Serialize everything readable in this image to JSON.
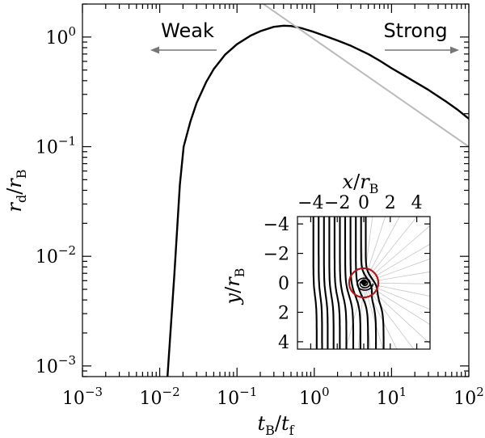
{
  "chart_data": [
    {
      "type": "line",
      "scale": {
        "x": "log",
        "y": "log"
      },
      "xlim": [
        0.001,
        100
      ],
      "ylim": [
        0.0008,
        2.0
      ],
      "x_ticks": [
        {
          "base": "10",
          "exp": "−3"
        },
        {
          "base": "10",
          "exp": "−2"
        },
        {
          "base": "10",
          "exp": "−1"
        },
        {
          "base": "10",
          "exp": "0"
        },
        {
          "base": "10",
          "exp": "1"
        },
        {
          "base": "10",
          "exp": "2"
        }
      ],
      "y_ticks": [
        {
          "base": "10",
          "exp": "−3"
        },
        {
          "base": "10",
          "exp": "−2"
        },
        {
          "base": "10",
          "exp": "−1"
        },
        {
          "base": "10",
          "exp": "0"
        }
      ],
      "xlabel": {
        "a": "t",
        "a_sub": "B",
        "sep": "/",
        "b": "t",
        "b_sub": "f"
      },
      "ylabel": {
        "a": "r",
        "a_sub": "d",
        "sep": "/",
        "b": "r",
        "b_sub": "B"
      },
      "annotations": {
        "weak": "Weak",
        "strong": "Strong"
      },
      "series": [
        {
          "style": "black-solid",
          "color": "#000000",
          "x": [
            0.0126,
            0.0155,
            0.0182,
            0.0204,
            0.025,
            0.03,
            0.04,
            0.05,
            0.07,
            0.1,
            0.15,
            0.2,
            0.3,
            0.4,
            0.5,
            0.7,
            1.0,
            1.5,
            2,
            3,
            5,
            7,
            10,
            15,
            20,
            30,
            50,
            70,
            100
          ],
          "y": [
            0.0008,
            0.007,
            0.045,
            0.1,
            0.17,
            0.25,
            0.39,
            0.51,
            0.69,
            0.86,
            1.03,
            1.13,
            1.24,
            1.27,
            1.26,
            1.2,
            1.11,
            1.0,
            0.93,
            0.83,
            0.7,
            0.61,
            0.52,
            0.44,
            0.39,
            0.33,
            0.26,
            0.22,
            0.18
          ]
        },
        {
          "style": "gray-solid",
          "color": "#bbbbbb",
          "x": [
            0.22,
            100
          ],
          "y": [
            2.0,
            0.1
          ]
        }
      ]
    },
    {
      "type": "streamlines",
      "inset": true,
      "xlim": [
        -5,
        5
      ],
      "ylim": [
        -4.5,
        4.5
      ],
      "y_inverted": true,
      "x_ticks": [
        "−4",
        "−2",
        "0",
        "2",
        "4"
      ],
      "y_ticks": [
        "−4",
        "−2",
        "0",
        "2",
        "4"
      ],
      "xlabel": {
        "a": "x",
        "sep": "/",
        "b": "r",
        "b_sub": "B"
      },
      "ylabel": {
        "a": "y",
        "sep": "/",
        "b": "r",
        "b_sub": "B"
      },
      "circle": {
        "center": [
          0,
          0
        ],
        "radius": 1.0,
        "color": "#b01818"
      },
      "streamline_x0": [
        -3.8,
        -3.4,
        -3.0,
        -2.6,
        -2.2,
        -1.8,
        -1.4,
        -1.0,
        -0.6,
        -0.2,
        0.15
      ],
      "ray_count": 20
    }
  ]
}
